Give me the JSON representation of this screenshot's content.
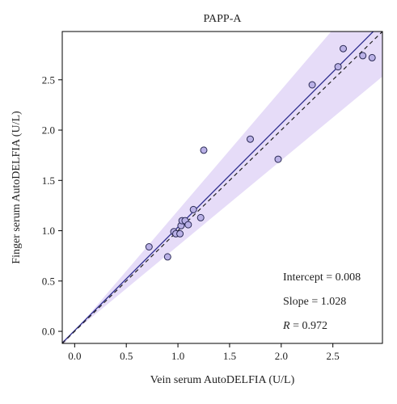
{
  "chart_data": {
    "type": "scatter",
    "title": "PAPP-A",
    "xlabel": "Vein serum AutoDELFIA (U/L)",
    "ylabel": "Finger serum AutoDELFIA (U/L)",
    "xlim": [
      -0.12,
      2.98
    ],
    "ylim": [
      -0.12,
      2.98
    ],
    "xticks": [
      "0.0",
      "0.5",
      "1.0",
      "1.5",
      "2.0",
      "2.5"
    ],
    "yticks": [
      "0.0",
      "0.5",
      "1.0",
      "1.5",
      "2.0",
      "2.5"
    ],
    "grid": false,
    "points": [
      {
        "x": 0.72,
        "y": 0.84
      },
      {
        "x": 0.9,
        "y": 0.74
      },
      {
        "x": 0.96,
        "y": 0.99
      },
      {
        "x": 0.98,
        "y": 0.97
      },
      {
        "x": 1.02,
        "y": 0.97
      },
      {
        "x": 1.03,
        "y": 1.05
      },
      {
        "x": 1.04,
        "y": 1.1
      },
      {
        "x": 1.07,
        "y": 1.1
      },
      {
        "x": 1.1,
        "y": 1.06
      },
      {
        "x": 1.15,
        "y": 1.21
      },
      {
        "x": 1.22,
        "y": 1.13
      },
      {
        "x": 1.25,
        "y": 1.8
      },
      {
        "x": 1.7,
        "y": 1.91
      },
      {
        "x": 1.97,
        "y": 1.71
      },
      {
        "x": 2.3,
        "y": 2.45
      },
      {
        "x": 2.55,
        "y": 2.63
      },
      {
        "x": 2.6,
        "y": 2.81
      },
      {
        "x": 2.79,
        "y": 2.74
      },
      {
        "x": 2.88,
        "y": 2.72
      }
    ],
    "regression": {
      "intercept": 0.008,
      "slope": 1.028
    },
    "identity_line": {
      "intercept": 0,
      "slope": 1
    },
    "band": {
      "lower_slope": 0.85,
      "upper_slope": 1.2
    },
    "annotations": {
      "intercept": "Intercept = 0.008",
      "slope": "Slope = 1.028",
      "r_label": "R",
      "r_value": " = 0.972"
    },
    "colors": {
      "band": "#e6dcf8",
      "regression": "#2f2f8f",
      "identity": "#222222",
      "point_fill": "#b9b0e6",
      "point_stroke": "#2a2a55"
    }
  }
}
